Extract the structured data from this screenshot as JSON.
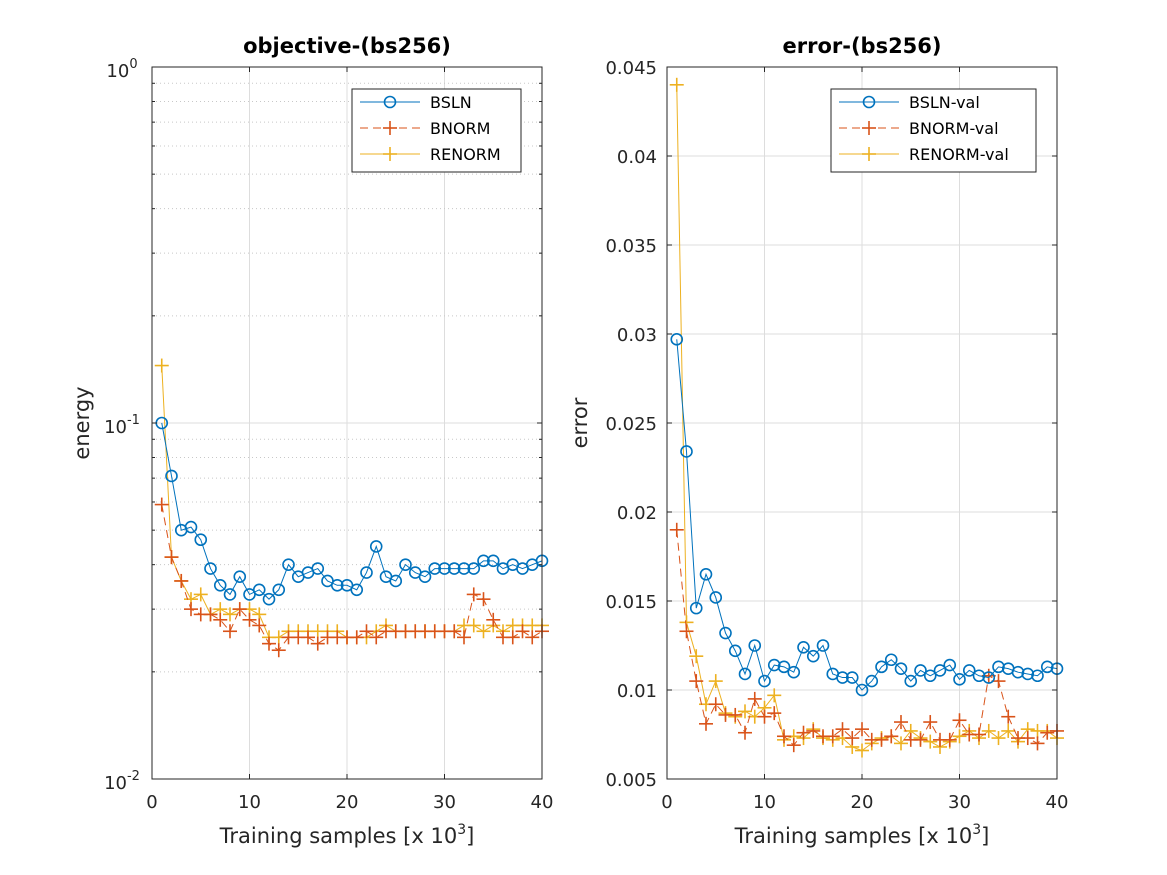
{
  "figure": {
    "background": "#ffffff"
  },
  "colors": {
    "BSLN": "#0072BD",
    "BNORM": "#D95319",
    "RENORM": "#EDB120",
    "grid": "#dddddd",
    "axis": "#262626"
  },
  "chart_data": [
    {
      "type": "line",
      "title": "objective-(bs256)",
      "xlabel": "Training samples [x 10",
      "xlabel_exp": "3",
      "xlabel_close": "]",
      "ylabel": "energy",
      "xlim": [
        0,
        40
      ],
      "ylim": [
        0.01,
        1
      ],
      "yscale": "log",
      "grid": true,
      "minor_grid": true,
      "legend_position": "top-right",
      "xticks": [
        "0",
        "10",
        "20",
        "30",
        "40"
      ],
      "yticks": [
        {
          "base": "10",
          "exp": "-2"
        },
        {
          "base": "10",
          "exp": "-1"
        },
        {
          "base": "10",
          "exp": "0"
        }
      ],
      "x": [
        1,
        2,
        3,
        4,
        5,
        6,
        7,
        8,
        9,
        10,
        11,
        12,
        13,
        14,
        15,
        16,
        17,
        18,
        19,
        20,
        21,
        22,
        23,
        24,
        25,
        26,
        27,
        28,
        29,
        30,
        31,
        32,
        33,
        34,
        35,
        36,
        37,
        38,
        39,
        40
      ],
      "series": [
        {
          "name": "BSLN",
          "marker": "circle",
          "line": "solid",
          "color": "#0072BD",
          "values": [
            0.1,
            0.071,
            0.05,
            0.051,
            0.047,
            0.039,
            0.035,
            0.033,
            0.037,
            0.033,
            0.034,
            0.032,
            0.034,
            0.04,
            0.037,
            0.038,
            0.039,
            0.036,
            0.035,
            0.035,
            0.034,
            0.038,
            0.045,
            0.037,
            0.036,
            0.04,
            0.038,
            0.037,
            0.039,
            0.039,
            0.039,
            0.039,
            0.039,
            0.041,
            0.041,
            0.039,
            0.04,
            0.039,
            0.04,
            0.041
          ]
        },
        {
          "name": "BNORM",
          "marker": "plus",
          "line": "dashed",
          "color": "#D95319",
          "values": [
            0.059,
            0.042,
            0.036,
            0.03,
            0.029,
            0.029,
            0.028,
            0.026,
            0.03,
            0.028,
            0.027,
            0.024,
            0.023,
            0.025,
            0.025,
            0.025,
            0.024,
            0.025,
            0.025,
            0.025,
            0.025,
            0.026,
            0.025,
            0.026,
            0.026,
            0.026,
            0.026,
            0.026,
            0.026,
            0.026,
            0.026,
            0.025,
            0.033,
            0.032,
            0.028,
            0.025,
            0.025,
            0.026,
            0.025,
            0.026
          ]
        },
        {
          "name": "RENORM",
          "marker": "plus",
          "line": "solid",
          "color": "#EDB120",
          "values": [
            0.145,
            0.042,
            0.036,
            0.032,
            0.033,
            0.029,
            0.03,
            0.029,
            0.03,
            0.03,
            0.029,
            0.025,
            0.025,
            0.026,
            0.026,
            0.026,
            0.026,
            0.026,
            0.026,
            0.025,
            0.025,
            0.025,
            0.026,
            0.027,
            0.026,
            0.026,
            0.026,
            0.026,
            0.026,
            0.026,
            0.026,
            0.027,
            0.027,
            0.026,
            0.027,
            0.026,
            0.027,
            0.027,
            0.027,
            0.027
          ]
        }
      ]
    },
    {
      "type": "line",
      "title": "error-(bs256)",
      "xlabel": "Training samples [x 10",
      "xlabel_exp": "3",
      "xlabel_close": "]",
      "ylabel": "error",
      "xlim": [
        0,
        40
      ],
      "ylim": [
        0.005,
        0.045
      ],
      "yscale": "linear",
      "grid": true,
      "legend_position": "top-right",
      "xticks": [
        "0",
        "10",
        "20",
        "30",
        "40"
      ],
      "yticks": [
        "0.005",
        "0.01",
        "0.015",
        "0.02",
        "0.025",
        "0.03",
        "0.035",
        "0.04",
        "0.045"
      ],
      "x": [
        1,
        2,
        3,
        4,
        5,
        6,
        7,
        8,
        9,
        10,
        11,
        12,
        13,
        14,
        15,
        16,
        17,
        18,
        19,
        20,
        21,
        22,
        23,
        24,
        25,
        26,
        27,
        28,
        29,
        30,
        31,
        32,
        33,
        34,
        35,
        36,
        37,
        38,
        39,
        40
      ],
      "series": [
        {
          "name": "BSLN-val",
          "marker": "circle",
          "line": "solid",
          "color": "#0072BD",
          "values": [
            0.0297,
            0.0234,
            0.0146,
            0.0165,
            0.0152,
            0.0132,
            0.0122,
            0.0109,
            0.0125,
            0.0105,
            0.0114,
            0.0113,
            0.011,
            0.0124,
            0.0119,
            0.0125,
            0.0109,
            0.0107,
            0.0107,
            0.01,
            0.0105,
            0.0113,
            0.0117,
            0.0112,
            0.0105,
            0.0111,
            0.0108,
            0.0111,
            0.0114,
            0.0106,
            0.0111,
            0.0108,
            0.0107,
            0.0113,
            0.0112,
            0.011,
            0.0109,
            0.0108,
            0.0113,
            0.0112
          ]
        },
        {
          "name": "BNORM-val",
          "marker": "plus",
          "line": "dashed",
          "color": "#D95319",
          "values": [
            0.019,
            0.0133,
            0.0105,
            0.0081,
            0.0092,
            0.0086,
            0.0086,
            0.0076,
            0.0095,
            0.0085,
            0.0087,
            0.0074,
            0.0069,
            0.0076,
            0.0077,
            0.0074,
            0.0074,
            0.0078,
            0.0073,
            0.0078,
            0.0072,
            0.0072,
            0.0074,
            0.0082,
            0.0072,
            0.0072,
            0.0082,
            0.0072,
            0.0072,
            0.0083,
            0.0075,
            0.0075,
            0.0108,
            0.0105,
            0.0085,
            0.0073,
            0.0073,
            0.007,
            0.0076,
            0.0077
          ]
        },
        {
          "name": "RENORM-val",
          "marker": "plus",
          "line": "solid",
          "color": "#EDB120",
          "values": [
            0.044,
            0.0138,
            0.0119,
            0.0092,
            0.0105,
            0.0087,
            0.0085,
            0.0088,
            0.0085,
            0.009,
            0.0097,
            0.0072,
            0.0074,
            0.0073,
            0.0078,
            0.0073,
            0.0072,
            0.0073,
            0.0068,
            0.0066,
            0.007,
            0.0073,
            0.0074,
            0.007,
            0.0077,
            0.0073,
            0.0071,
            0.0068,
            0.0071,
            0.0074,
            0.0077,
            0.0073,
            0.0077,
            0.0073,
            0.0077,
            0.0071,
            0.0078,
            0.0077,
            0.0077,
            0.0073
          ]
        }
      ]
    }
  ]
}
